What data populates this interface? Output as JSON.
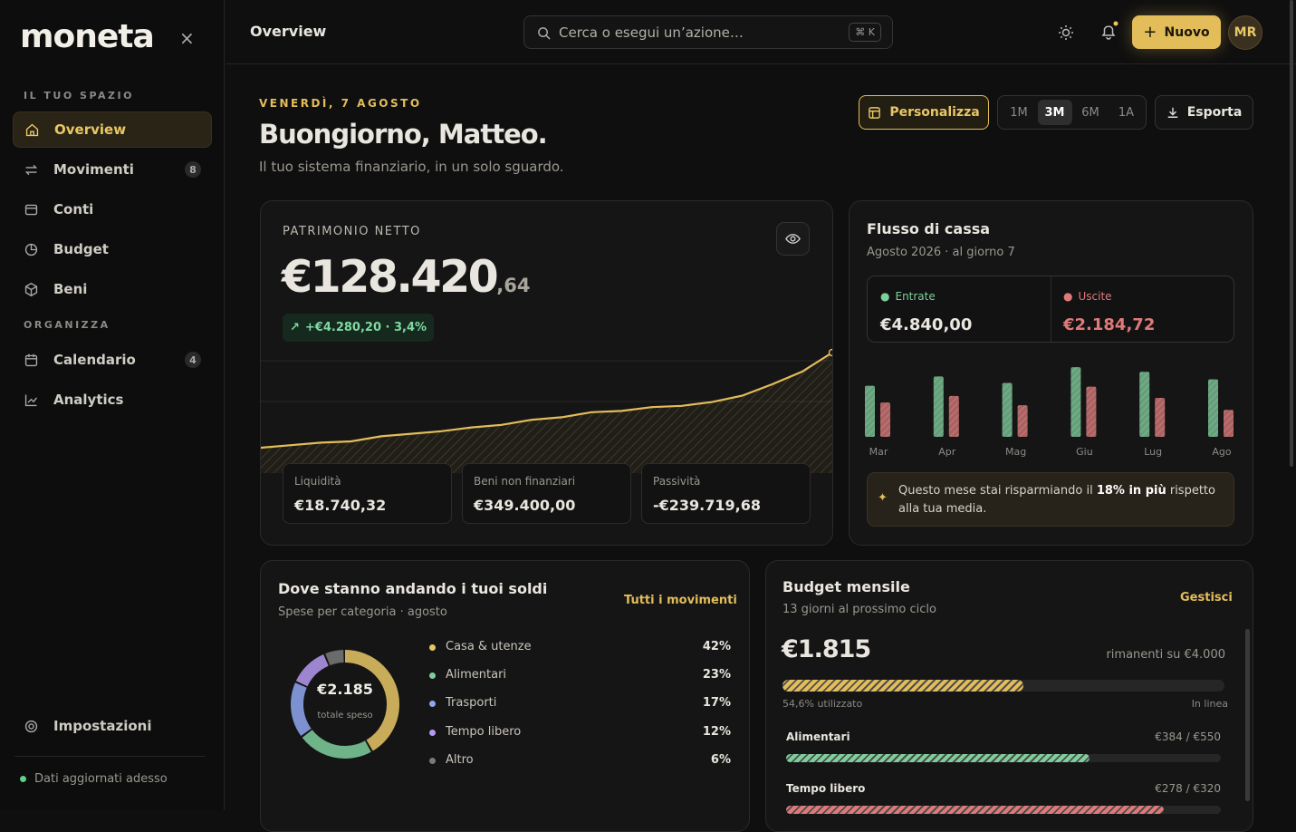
{
  "sidebar": {
    "logo": "moneta",
    "sections": [
      {
        "title": "IL TUO SPAZIO",
        "items": [
          {
            "label": "Overview",
            "active": true
          },
          {
            "label": "Movimenti",
            "badge": 8
          },
          {
            "label": "Conti"
          },
          {
            "label": "Budget"
          },
          {
            "label": "Beni"
          }
        ]
      },
      {
        "title": "ORGANIZZA",
        "items": [
          {
            "label": "Calendario",
            "badge": 4
          },
          {
            "label": "Analytics"
          }
        ]
      }
    ],
    "settings": "Impostazioni",
    "status": "Dati aggiornati adesso"
  },
  "topbar": {
    "title": "Overview",
    "search": "Cerca o esegui un’azione…",
    "shortcut": "⌘ K",
    "new_button": "Nuovo",
    "avatar": "MR"
  },
  "header": {
    "date": "VENERDÌ, 7 AGOSTO",
    "greeting": "Buongiorno, Matteo.",
    "subtitle": "Il tuo sistema finanziario, in un solo sguardo.",
    "customize": "Personalizza",
    "ranges": [
      {
        "label": "1M"
      },
      {
        "label": "3M",
        "active": true
      },
      {
        "label": "6M"
      },
      {
        "label": "1A"
      }
    ],
    "export": "Esporta"
  },
  "net_worth": {
    "label": "PATRIMONIO NETTO",
    "value": "€128.420",
    "cents": ",64",
    "change": "+€4.280,20 · 3,4%",
    "accounts": [
      {
        "label": "Liquidità",
        "value": "€18.740,32"
      },
      {
        "label": "Beni non finanziari",
        "value": "€349.400,00"
      },
      {
        "label": "Passività",
        "value": "-€239.719,68"
      }
    ]
  },
  "cash_flow": {
    "title": "Flusso di cassa",
    "subtitle": "Agosto 2026 · al giorno 7",
    "income": "€4.840,00",
    "expenses": "€2.184,72",
    "tip": {
      "before": "Questo mese stai risparmiando il ",
      "highlight": "18% in più",
      "after": " rispetto alla tua media."
    }
  },
  "spending": {
    "title": "Dove stanno andando i tuoi soldi",
    "subtitle": "Spese per categoria · agosto",
    "link": "Tutti i movimenti",
    "total": "€2.185",
    "total_label": "totale speso"
  },
  "budget": {
    "title": "Budget mensile",
    "subtitle": "13 giorni al prossimo ciclo",
    "link": "Gestisci",
    "remaining": "€1.815",
    "remaining_label": "rimanenti su €4.000",
    "used": 54.6,
    "used_label": "54,6% utilizzato",
    "status": "In linea",
    "items": [
      {
        "name": "Alimentari",
        "spent": 384,
        "limit": 550,
        "label": "€384 / €550",
        "color": "#7fcf9c"
      },
      {
        "name": "Tempo libero",
        "spent": 278,
        "limit": 320,
        "label": "€278 / €320",
        "color": "#e07a7a"
      }
    ]
  },
  "chart_data": [
    {
      "type": "area",
      "color": "#e3bd5a",
      "ylim": [
        0,
        100
      ],
      "values": [
        20,
        22,
        24,
        25,
        29,
        31,
        33,
        36,
        38,
        42,
        44,
        48,
        49,
        52,
        53,
        56,
        61,
        70,
        80,
        95
      ]
    },
    {
      "type": "bar",
      "ylim": [
        0,
        80
      ],
      "categories": [
        "Mar",
        "Apr",
        "Mag",
        "Giu",
        "Lug",
        "Ago"
      ],
      "series": [
        {
          "name": "Entrate",
          "color": "#7fcf9c",
          "values": [
            55,
            65,
            58,
            75,
            70,
            62
          ]
        },
        {
          "name": "Uscite",
          "color": "#e07a7a",
          "values": [
            37,
            44,
            34,
            54,
            42,
            29
          ]
        }
      ]
    },
    {
      "type": "pie",
      "categories": [
        "Casa & utenze",
        "Alimentari",
        "Trasporti",
        "Tempo libero",
        "Altro"
      ],
      "values": [
        42,
        23,
        17,
        12,
        6
      ],
      "value_labels": [
        "42%",
        "23%",
        "17%",
        "12%",
        "6%"
      ],
      "colors": [
        "#e8c766",
        "#7fcf9c",
        "#8fa6f0",
        "#b59af0",
        "#7a7a7a"
      ]
    }
  ]
}
